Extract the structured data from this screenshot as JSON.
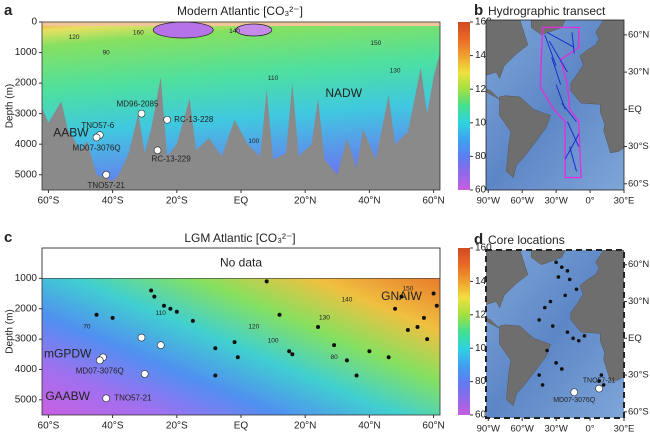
{
  "chart_data": [
    {
      "type": "section",
      "label": "a",
      "title": "Modern Atlantic [CO₃²⁻]",
      "ylabel": "Depth (m)",
      "xlim": [
        -62,
        62
      ],
      "xticks": [
        {
          "value": -60,
          "label": "60°S"
        },
        {
          "value": -40,
          "label": "40°S"
        },
        {
          "value": -20,
          "label": "20°S"
        },
        {
          "value": 0,
          "label": "EQ"
        },
        {
          "value": 20,
          "label": "20°N"
        },
        {
          "value": 40,
          "label": "40°N"
        },
        {
          "value": 60,
          "label": "60°N"
        }
      ],
      "ylim": [
        0,
        5500
      ],
      "y_inverted": true,
      "yticks": [
        0,
        1000,
        2000,
        3000,
        4000,
        5000
      ],
      "colorbar": {
        "lim": [
          60,
          160
        ],
        "ticks": [
          60,
          80,
          100,
          120,
          140,
          160
        ]
      },
      "water_masses": [
        {
          "text": "AABW",
          "x": -53,
          "y": 3650
        },
        {
          "text": "NADW",
          "x": 32,
          "y": 2350
        }
      ],
      "cores": [
        {
          "name": "TNO57-6",
          "x": -44,
          "y": 3700,
          "color": "#ffffff",
          "label_color": "#ffffff"
        },
        {
          "name": "MD07-3076Q",
          "x": -45,
          "y": 3780,
          "color": "#ffffff",
          "label_color": "#f5e642"
        },
        {
          "name": "MD96-2085",
          "x": -31,
          "y": 3000,
          "color": "#ffffff",
          "label_color": "#ffffff"
        },
        {
          "name": "RC-13-228",
          "x": -23,
          "y": 3200,
          "color": "#ffffff",
          "label_color": "#ffffff"
        },
        {
          "name": "RC-13-229",
          "x": -26,
          "y": 4200,
          "color": "#ffffff",
          "label_color": "#ffffff"
        },
        {
          "name": "TNO57-21",
          "x": -42,
          "y": 5000,
          "color": "#ffffff",
          "label_color": "#f5e642"
        }
      ],
      "contour_labels": [
        {
          "value": 160,
          "x": -32,
          "y": 350
        },
        {
          "value": 150,
          "x": 42,
          "y": 700
        },
        {
          "value": 140,
          "x": -2,
          "y": 300
        },
        {
          "value": 130,
          "x": 48,
          "y": 1600
        },
        {
          "value": 120,
          "x": -52,
          "y": 500
        },
        {
          "value": 110,
          "x": 10,
          "y": 1850
        },
        {
          "value": 100,
          "x": 4,
          "y": 3900
        },
        {
          "value": 90,
          "x": -42,
          "y": 1000
        }
      ]
    },
    {
      "type": "section",
      "label": "c",
      "title": "LGM Atlantic [CO₃²⁻]",
      "ylabel": "Depth (m)",
      "no_data_label": "No data",
      "no_data_depth": 1000,
      "xlim": [
        -62,
        62
      ],
      "xticks": [
        {
          "value": -60,
          "label": "60°S"
        },
        {
          "value": -40,
          "label": "40°S"
        },
        {
          "value": -20,
          "label": "20°S"
        },
        {
          "value": 0,
          "label": "EQ"
        },
        {
          "value": 20,
          "label": "20°N"
        },
        {
          "value": 40,
          "label": "40°N"
        },
        {
          "value": 60,
          "label": "60°N"
        }
      ],
      "ylim": [
        0,
        5500
      ],
      "y_inverted": true,
      "yticks": [
        1000,
        2000,
        3000,
        4000,
        5000
      ],
      "colorbar": {
        "lim": [
          60,
          160
        ],
        "ticks": [
          60,
          80,
          100,
          120,
          140,
          160
        ]
      },
      "water_masses": [
        {
          "text": "GNAIW",
          "x": 50,
          "y": 1600
        },
        {
          "text": "mGPDW",
          "x": -54,
          "y": 3500
        },
        {
          "text": "GAABW",
          "x": -54,
          "y": 4900
        }
      ],
      "cores": [
        {
          "name": "MD07-3076Q",
          "x": -44,
          "y": 3700,
          "color": "#ffffff",
          "label_color": "#f5e642"
        },
        {
          "name": "TNO57-21",
          "x": -42,
          "y": 4950,
          "color": "#ffffff",
          "label_color": "#f5e642"
        }
      ],
      "white_sites": {
        "x": [
          -43,
          -31,
          -25,
          -30
        ],
        "y": [
          3600,
          2950,
          3200,
          4150
        ]
      },
      "sites": {
        "color": "#111111",
        "x": [
          -28,
          -27,
          -24,
          -22,
          -20,
          -15,
          -40,
          -45,
          -8,
          -8,
          -2,
          -1,
          8,
          12,
          15,
          16,
          24,
          29,
          33,
          36,
          40,
          46,
          48,
          50,
          52,
          55,
          57,
          58,
          60,
          61
        ],
        "y": [
          1400,
          1600,
          1900,
          2000,
          2100,
          2400,
          2300,
          2200,
          3300,
          4200,
          3100,
          3600,
          1100,
          2200,
          3400,
          3500,
          2600,
          3200,
          3700,
          4200,
          3400,
          3600,
          2000,
          1600,
          2700,
          2600,
          2300,
          3000,
          1500,
          1900
        ]
      },
      "contour_labels": [
        {
          "value": 150,
          "x": 52,
          "y": 1350
        },
        {
          "value": 140,
          "x": 33,
          "y": 1700
        },
        {
          "value": 130,
          "x": 26,
          "y": 2300
        },
        {
          "value": 120,
          "x": 4,
          "y": 2600
        },
        {
          "value": 110,
          "x": -25,
          "y": 2150
        },
        {
          "value": 100,
          "x": 10,
          "y": 3050
        },
        {
          "value": 80,
          "x": 29,
          "y": 3600
        },
        {
          "value": 70,
          "x": -48,
          "y": 2600
        }
      ]
    },
    {
      "type": "map",
      "label": "b",
      "title": "Hydrographic transect",
      "xlim": [
        -92,
        30
      ],
      "ylim": [
        -65,
        72
      ],
      "xticks": [
        {
          "value": -90,
          "label": "90°W"
        },
        {
          "value": -60,
          "label": "60°W"
        },
        {
          "value": -30,
          "label": "30°W"
        },
        {
          "value": 0,
          "label": "0°"
        },
        {
          "value": 30,
          "label": "30°E"
        }
      ],
      "yticks": [
        {
          "value": 60,
          "label": "60°N"
        },
        {
          "value": 30,
          "label": "30°N"
        },
        {
          "value": 0,
          "label": "EQ"
        },
        {
          "value": -30,
          "label": "30°S"
        },
        {
          "value": -60,
          "label": "60°S"
        }
      ]
    },
    {
      "type": "map",
      "label": "d",
      "title": "Core locations",
      "xlim": [
        -92,
        30
      ],
      "ylim": [
        -65,
        72
      ],
      "xticks": [
        {
          "value": -90,
          "label": "90°W"
        },
        {
          "value": -60,
          "label": "60°W"
        },
        {
          "value": -30,
          "label": "30°W"
        },
        {
          "value": 0,
          "label": "0°"
        },
        {
          "value": 30,
          "label": "30°E"
        }
      ],
      "yticks": [
        {
          "value": 60,
          "label": "60°N"
        },
        {
          "value": 30,
          "label": "30°N"
        },
        {
          "value": 0,
          "label": "EQ"
        },
        {
          "value": -30,
          "label": "30°S"
        },
        {
          "value": -60,
          "label": "60°S"
        }
      ],
      "cores": [
        {
          "name": "TNO57-21",
          "x": 8,
          "y": -41,
          "color": "#ffffff",
          "label_color": "#f5e642"
        },
        {
          "name": "MD07-3076Q",
          "x": -14,
          "y": -44,
          "color": "#ffffff",
          "label_color": "#f5e642"
        }
      ],
      "sites": {
        "color": "#111111",
        "x": [
          -30,
          -25,
          -20,
          -28,
          -18,
          -12,
          -22,
          -35,
          -40,
          -45,
          -33,
          -20,
          -15,
          -10,
          -5,
          -38,
          -30,
          -25,
          -45,
          -42,
          10,
          8,
          12
        ],
        "y": [
          62,
          58,
          55,
          50,
          48,
          40,
          35,
          30,
          25,
          15,
          10,
          5,
          0,
          -2,
          2,
          -10,
          -20,
          -25,
          -30,
          -38,
          -30,
          -35,
          -38
        ]
      }
    }
  ]
}
